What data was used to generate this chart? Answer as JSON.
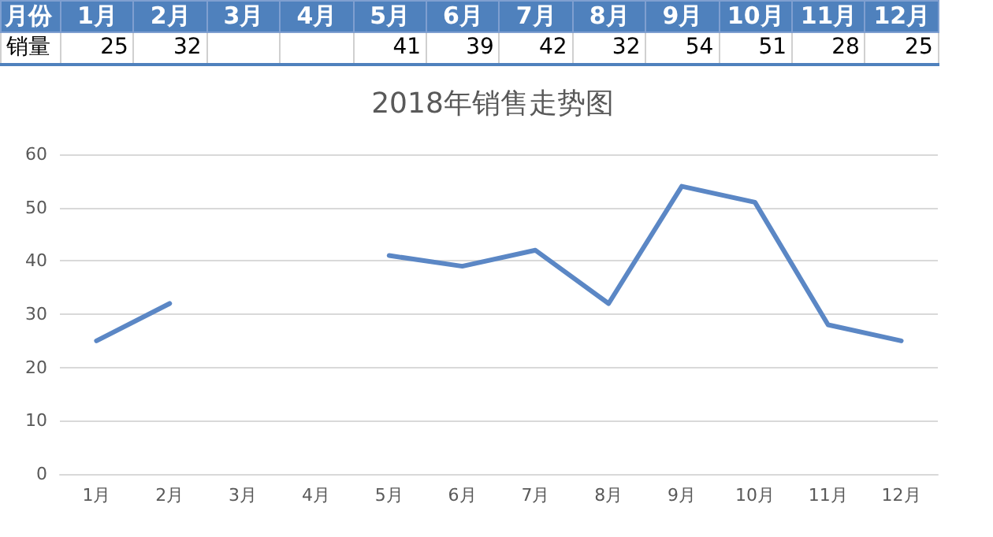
{
  "chart_data": {
    "type": "line",
    "title": "2018年销售走势图",
    "categories": [
      "1月",
      "2月",
      "3月",
      "4月",
      "5月",
      "6月",
      "7月",
      "8月",
      "9月",
      "10月",
      "11月",
      "12月"
    ],
    "values": [
      25,
      32,
      null,
      null,
      41,
      39,
      42,
      32,
      54,
      51,
      28,
      25
    ],
    "color": "#5b87c5",
    "ylim": [
      0,
      60
    ],
    "yticks": [
      0,
      10,
      20,
      30,
      40,
      50,
      60
    ],
    "grid": "y",
    "marker": "none",
    "line_style": "solid",
    "data_labels": true,
    "annotations": [
      "月份",
      "销量"
    ]
  }
}
